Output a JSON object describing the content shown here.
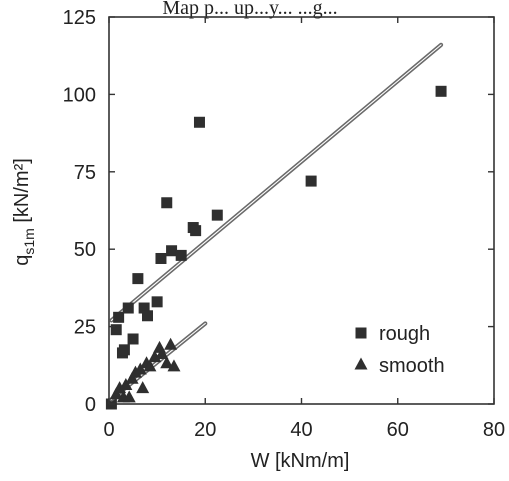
{
  "chart_data": {
    "type": "scatter",
    "title": "",
    "top_caption": "Map p... up...y... ...g...",
    "xlabel": "W [kNm/m]",
    "ylabel_main": "q",
    "ylabel_sub": "s1m",
    "ylabel_unit": " [kN/m²]",
    "xlim": [
      0,
      80
    ],
    "ylim": [
      0,
      125
    ],
    "x_ticks": [
      0,
      20,
      40,
      60,
      80
    ],
    "y_ticks": [
      0,
      25,
      50,
      75,
      100,
      125
    ],
    "grid": false,
    "legend_position": "lower-right",
    "series": [
      {
        "name": "rough",
        "marker": "square",
        "color": "#2f2f2f",
        "points": [
          [
            0.5,
            0
          ],
          [
            1.5,
            24
          ],
          [
            2,
            28
          ],
          [
            2.8,
            16.5
          ],
          [
            3.2,
            17.5
          ],
          [
            4,
            31
          ],
          [
            5,
            21
          ],
          [
            6,
            40.5
          ],
          [
            7.3,
            31
          ],
          [
            8,
            28.5
          ],
          [
            10,
            33
          ],
          [
            10.8,
            47
          ],
          [
            12,
            65
          ],
          [
            13,
            49.5
          ],
          [
            15,
            48
          ],
          [
            17.5,
            57
          ],
          [
            18,
            56
          ],
          [
            18.8,
            91
          ],
          [
            22.5,
            61
          ],
          [
            42,
            72
          ],
          [
            69,
            101
          ]
        ],
        "fit_line": [
          [
            0.5,
            27
          ],
          [
            69,
            116
          ]
        ]
      },
      {
        "name": "smooth",
        "marker": "triangle",
        "color": "#2f2f2f",
        "points": [
          [
            1.5,
            3
          ],
          [
            2.2,
            5
          ],
          [
            3,
            2
          ],
          [
            3.5,
            6
          ],
          [
            4.2,
            2
          ],
          [
            4.8,
            8
          ],
          [
            5.5,
            10
          ],
          [
            6.5,
            11
          ],
          [
            7,
            5
          ],
          [
            7.8,
            13
          ],
          [
            8.5,
            12
          ],
          [
            9.5,
            15
          ],
          [
            10.5,
            18
          ],
          [
            11,
            16
          ],
          [
            12,
            13
          ],
          [
            12.8,
            19
          ],
          [
            13.5,
            12
          ]
        ],
        "fit_line": [
          [
            0.5,
            1.5
          ],
          [
            20,
            26
          ]
        ]
      }
    ]
  }
}
